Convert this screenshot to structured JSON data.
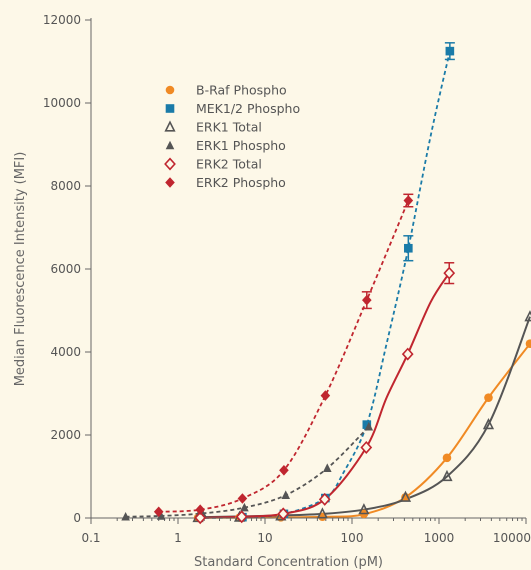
{
  "chart_data": {
    "type": "scatter",
    "title": "",
    "xlabel": "Standard Concentration (pM)",
    "ylabel": "Median Fluorescence Intensity (MFI)",
    "xscale": "log",
    "xlim": [
      0.1,
      10000
    ],
    "ylim": [
      0,
      12000
    ],
    "x_ticks": [
      0.1,
      1,
      10,
      100,
      1000,
      10000
    ],
    "x_tick_labels": [
      "0.1",
      "1",
      "10",
      "100",
      "1000",
      "10000"
    ],
    "y_ticks": [
      0,
      2000,
      4000,
      6000,
      8000,
      10000,
      12000
    ],
    "y_tick_labels": [
      "0",
      "2000",
      "4000",
      "6000",
      "8000",
      "10000",
      "12000"
    ],
    "grid": false,
    "legend_position": "top-left",
    "series": [
      {
        "name": "B-Raf Phospho",
        "color": "#f08a24",
        "marker": "circle",
        "line": "solid",
        "x": [
          1.7,
          5.1,
          15.2,
          45.7,
          137,
          412,
          1235,
          3704,
          11111
        ],
        "y": [
          5,
          10,
          15,
          30,
          100,
          500,
          1450,
          2900,
          4200
        ],
        "curve_x": [
          1.7,
          10,
          50,
          137,
          412,
          1235,
          3704,
          11111
        ],
        "curve_y": [
          5,
          10,
          30,
          90,
          500,
          1450,
          2900,
          4200
        ]
      },
      {
        "name": "MEK1/2 Phospho",
        "color": "#1a7ba8",
        "marker": "square",
        "line": "dashed",
        "x": [
          5.5,
          16.5,
          49.4,
          148,
          444,
          1333
        ],
        "y": [
          20,
          100,
          480,
          2250,
          6500,
          11250
        ],
        "error": [
          0,
          0,
          0,
          0,
          300,
          200
        ],
        "curve_x": [
          1.7,
          5.5,
          16.5,
          49.4,
          80,
          148,
          250,
          444,
          800,
          1333
        ],
        "curve_y": [
          0,
          20,
          100,
          480,
          1100,
          2250,
          4200,
          6500,
          9200,
          11250
        ]
      },
      {
        "name": "ERK1 Total",
        "color": "#555555",
        "marker": "triangle-open",
        "line": "solid",
        "x": [
          1.7,
          5.1,
          15.2,
          45.7,
          137,
          412,
          1235,
          3704,
          11111
        ],
        "y": [
          10,
          20,
          50,
          100,
          200,
          500,
          1000,
          2250,
          4850
        ],
        "curve_x": [
          1.7,
          15.2,
          45.7,
          137,
          412,
          1235,
          3704,
          11111
        ],
        "curve_y": [
          20,
          60,
          100,
          200,
          450,
          1000,
          2250,
          4850
        ]
      },
      {
        "name": "ERK1 Phospho",
        "color": "#555555",
        "marker": "triangle",
        "line": "dashed",
        "x": [
          0.25,
          0.64,
          1.9,
          5.8,
          17.3,
          52,
          156
        ],
        "y": [
          30,
          50,
          120,
          250,
          550,
          1200,
          2200
        ],
        "curve_x": [
          0.25,
          0.64,
          1.9,
          5.8,
          17.3,
          52,
          156
        ],
        "curve_y": [
          30,
          50,
          110,
          250,
          550,
          1200,
          2200
        ]
      },
      {
        "name": "ERK2 Total",
        "color": "#c0262f",
        "marker": "diamond-open",
        "line": "solid",
        "x": [
          1.8,
          5.4,
          16.2,
          48.6,
          146,
          437,
          1311
        ],
        "y": [
          5,
          30,
          100,
          450,
          1700,
          3950,
          5900
        ],
        "error": [
          0,
          0,
          0,
          0,
          0,
          0,
          250
        ],
        "curve_x": [
          1.8,
          5.4,
          16.2,
          48.6,
          146,
          250,
          437,
          800,
          1311
        ],
        "curve_y": [
          5,
          30,
          100,
          450,
          1700,
          2900,
          3950,
          5200,
          5900
        ]
      },
      {
        "name": "ERK2 Phospho",
        "color": "#c0262f",
        "marker": "diamond",
        "line": "dashed",
        "x": [
          0.6,
          1.8,
          5.5,
          16.5,
          49.4,
          148,
          444
        ],
        "y": [
          150,
          200,
          470,
          1150,
          2950,
          5250,
          7650
        ],
        "error": [
          0,
          0,
          0,
          0,
          0,
          200,
          150
        ],
        "curve_x": [
          0.6,
          1.8,
          5.5,
          16.5,
          49.4,
          148,
          444
        ],
        "curve_y": [
          150,
          200,
          470,
          1150,
          2950,
          5250,
          7650
        ]
      }
    ]
  }
}
